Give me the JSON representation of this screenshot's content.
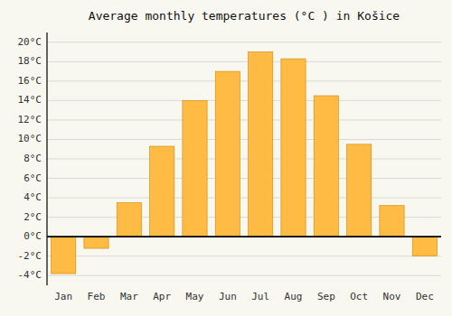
{
  "chart_data": {
    "type": "bar",
    "title": "Average monthly temperatures (°C ) in Košice",
    "categories": [
      "Jan",
      "Feb",
      "Mar",
      "Apr",
      "May",
      "Jun",
      "Jul",
      "Aug",
      "Sep",
      "Oct",
      "Nov",
      "Dec"
    ],
    "values": [
      -3.8,
      -1.2,
      3.5,
      9.3,
      14.0,
      17.0,
      19.0,
      18.3,
      14.5,
      9.5,
      3.2,
      -2.0
    ],
    "color": "#FFBB44",
    "ylim": [
      -5,
      21
    ],
    "yticks": [
      {
        "value": -4,
        "label": "-4°C"
      },
      {
        "value": -2,
        "label": "-2°C"
      },
      {
        "value": 0,
        "label": "0°C"
      },
      {
        "value": 2,
        "label": "2°C"
      },
      {
        "value": 4,
        "label": "4°C"
      },
      {
        "value": 6,
        "label": "6°C"
      },
      {
        "value": 8,
        "label": "8°C"
      },
      {
        "value": 10,
        "label": "10°C"
      },
      {
        "value": 12,
        "label": "12°C"
      },
      {
        "value": 14,
        "label": "14°C"
      },
      {
        "value": 16,
        "label": "16°C"
      },
      {
        "value": 18,
        "label": "18°C"
      },
      {
        "value": 20,
        "label": "20°C"
      }
    ],
    "grid": true
  }
}
